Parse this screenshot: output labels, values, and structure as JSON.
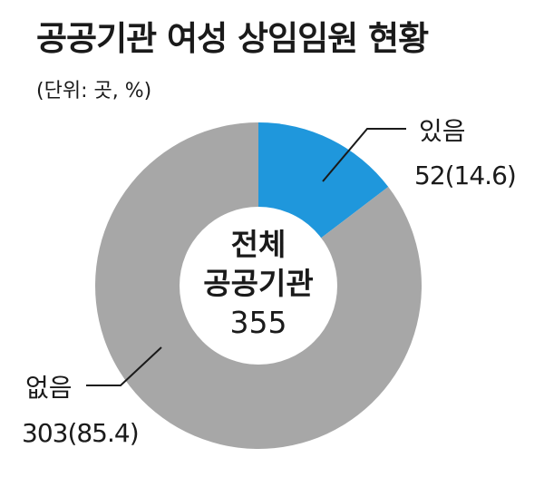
{
  "header": {
    "title": "공공기관 여성 상임임원 현황",
    "unit": "(단위: 곳, %)"
  },
  "center_label": {
    "line1": "전체",
    "line2": "공공기관",
    "total": "355"
  },
  "colors": {
    "yes": "#1f97dc",
    "no": "#a7a7a7",
    "hole": "#ffffff",
    "text": "#1a1a1a"
  },
  "chart_data": {
    "type": "pie",
    "title": "공공기관 여성 상임임원 현황",
    "unit": "(단위: 곳, %)",
    "total": 355,
    "slices": [
      {
        "label": "있음",
        "value": 52,
        "percent": 14.6,
        "display": "52(14.6)"
      },
      {
        "label": "없음",
        "value": 303,
        "percent": 85.4,
        "display": "303(85.4)"
      }
    ]
  }
}
